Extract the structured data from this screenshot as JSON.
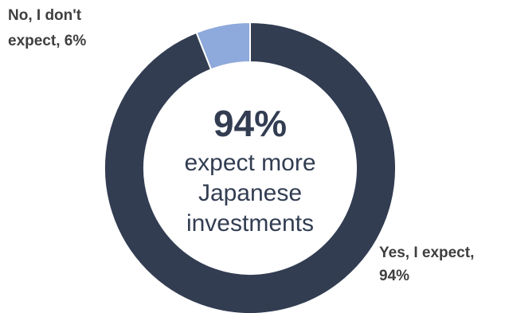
{
  "chart_data": {
    "type": "pie",
    "donut": true,
    "categories": [
      "Yes, I expect",
      "No, I don't expect"
    ],
    "values": [
      94,
      6
    ],
    "colors": [
      "#323d52",
      "#8ea9db"
    ],
    "slice_labels": [
      [
        "Yes, I expect,",
        "94%"
      ],
      [
        "No, I don't",
        "expect, 6%"
      ]
    ],
    "center": {
      "value": "94%",
      "lines": [
        "expect more",
        "Japanese",
        "investments"
      ]
    }
  }
}
